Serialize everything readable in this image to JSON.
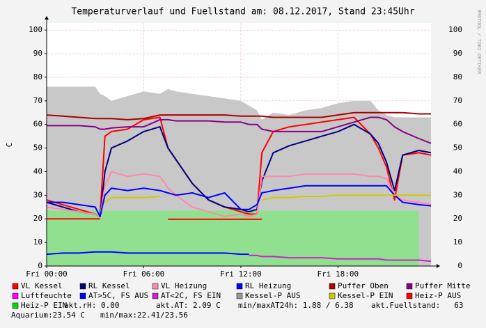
{
  "chart_data": {
    "type": "line",
    "title": "Temperaturverlauf und Fuellstand am: 08.12.2017, Stand 23:45Uhr",
    "y_label": "C",
    "watermark": "RRDTOOL / TOBI OETIKER",
    "x": [
      0,
      1,
      2,
      3,
      3.3,
      3.6,
      4,
      5,
      6,
      7,
      7.5,
      8,
      9,
      10,
      11,
      12,
      12.5,
      13,
      13.3,
      14,
      15,
      16,
      17,
      18,
      19,
      20,
      20.5,
      21,
      21.5,
      22,
      23,
      23.75
    ],
    "xlim": [
      0,
      23.75
    ],
    "xticks": [
      {
        "value": 0,
        "label": "Fri 00:00"
      },
      {
        "value": 6,
        "label": "Fri 06:00"
      },
      {
        "value": 12,
        "label": "Fri 12:00"
      },
      {
        "value": 18,
        "label": "Fri 18:00"
      }
    ],
    "ylim": [
      0,
      103
    ],
    "yticks": [
      0,
      10,
      20,
      30,
      40,
      50,
      60,
      70,
      80,
      90,
      100
    ],
    "grid": true,
    "series": [
      {
        "name": "VL Kessel",
        "color": "#ff0000",
        "style": "line",
        "values": [
          28,
          26,
          24,
          22,
          21,
          55,
          57,
          58,
          62,
          63,
          50,
          45,
          35,
          28,
          25,
          23,
          22,
          22,
          48,
          57,
          59,
          60,
          61,
          62,
          63,
          56,
          50,
          42,
          28,
          47,
          48,
          47
        ]
      },
      {
        "name": "RL Kessel",
        "color": "#000080",
        "style": "line",
        "values": [
          27,
          25,
          23,
          22,
          21,
          40,
          50,
          53,
          57,
          59,
          50,
          45,
          35,
          28,
          25,
          24,
          23,
          24,
          36,
          48,
          51,
          53,
          55,
          57,
          60,
          56,
          52,
          44,
          32,
          47,
          49,
          48
        ]
      },
      {
        "name": "VL Heizung",
        "color": "#ff88aa",
        "style": "line",
        "values": [
          25,
          24,
          23,
          22,
          21,
          34,
          40,
          38,
          39,
          38,
          33,
          30,
          25,
          23,
          21,
          22,
          21,
          22,
          38,
          38,
          38,
          39,
          39,
          39,
          39,
          38,
          38,
          37,
          30,
          28,
          27,
          26
        ]
      },
      {
        "name": "RL Heizung",
        "color": "#0000ff",
        "style": "line",
        "values": [
          27,
          27,
          26,
          25,
          21,
          30,
          33,
          32,
          33,
          32,
          31,
          30,
          31,
          29,
          31,
          24,
          24,
          26,
          31,
          32,
          33,
          34,
          34,
          34,
          34,
          34,
          34,
          34,
          30,
          27,
          26,
          25.5
        ]
      },
      {
        "name": "Puffer Oben",
        "color": "#aa0000",
        "style": "line",
        "values": [
          64,
          63.5,
          63,
          62.5,
          62.5,
          62.5,
          62.5,
          62,
          62.5,
          64,
          64,
          64,
          64,
          64,
          64,
          63.5,
          63.5,
          63.5,
          63.5,
          63,
          63,
          63,
          63,
          64,
          65,
          65,
          65,
          65,
          65,
          65,
          64.5,
          64.5
        ]
      },
      {
        "name": "Puffer Mitte",
        "color": "#880088",
        "style": "line",
        "values": [
          59.5,
          59.5,
          59.5,
          59,
          58,
          58,
          58.5,
          59,
          59,
          62,
          62,
          61.5,
          61.5,
          61.5,
          61,
          61,
          60,
          60,
          58,
          57,
          57,
          57,
          57,
          59,
          61,
          63,
          63,
          62,
          59,
          57,
          54,
          52
        ]
      },
      {
        "name": "Luftfeuchte",
        "color": "#ff00ff",
        "style": "line",
        "values": [
          null,
          null,
          null,
          null,
          null,
          null,
          null,
          null,
          null,
          null,
          null,
          null,
          null,
          null,
          null,
          null,
          null,
          null,
          null,
          null,
          null,
          null,
          null,
          null,
          null,
          null,
          null,
          null,
          null,
          null,
          null,
          null
        ]
      },
      {
        "name": "AT>5C, FS AUS",
        "color": "#0000ff",
        "style": "line",
        "values": [
          5,
          5.5,
          5.5,
          6,
          6,
          6,
          6,
          5.5,
          5.5,
          5.5,
          5.5,
          5.5,
          5.5,
          5.5,
          5.5,
          5,
          5,
          null,
          null,
          null,
          null,
          null,
          null,
          null,
          null,
          null,
          null,
          null,
          null,
          null,
          null,
          null
        ]
      },
      {
        "name": "AT<2C, FS EIN",
        "color": "#cc22cc",
        "style": "line",
        "values": [
          null,
          null,
          null,
          null,
          null,
          null,
          null,
          null,
          null,
          null,
          null,
          null,
          null,
          null,
          null,
          null,
          4.5,
          4.5,
          4,
          4,
          3.5,
          3.5,
          3.5,
          3,
          3,
          3,
          3,
          2.5,
          2.5,
          2.5,
          2.5,
          2
        ]
      },
      {
        "name": "Kessel-P AUS",
        "color": "#c8c8c8",
        "style": "area",
        "values": [
          76,
          76,
          76,
          76,
          73,
          72,
          70,
          72,
          74,
          73,
          75,
          74,
          73,
          72,
          71,
          70,
          68,
          66,
          62,
          65,
          64,
          66,
          67,
          69,
          70,
          70,
          66,
          64,
          63,
          63,
          63,
          63
        ]
      },
      {
        "name": "Kessel-P EIN",
        "color": "#cccc00",
        "style": "line",
        "values": [
          null,
          null,
          null,
          null,
          null,
          27,
          29,
          29,
          29,
          29.5,
          null,
          null,
          null,
          null,
          null,
          null,
          null,
          null,
          28,
          29,
          29,
          29.5,
          29.5,
          30,
          30,
          30,
          30,
          30,
          30,
          30,
          30,
          30
        ]
      },
      {
        "name": "Heiz-P AUS",
        "color": "#ff0000",
        "style": "line",
        "values": [
          20,
          20,
          20,
          20,
          20,
          null,
          null,
          null,
          null,
          null,
          19.8,
          19.8,
          19.8,
          19.8,
          19.8,
          19.8,
          19.8,
          19.8,
          19.8,
          null,
          null,
          null,
          null,
          null,
          null,
          null,
          null,
          null,
          null,
          null,
          null,
          null
        ]
      },
      {
        "name": "Heiz-P EIN",
        "color": "#90e090",
        "style": "area",
        "values": [
          23.5,
          23.5,
          23.5,
          23.5,
          23.5,
          23.5,
          23.5,
          23.5,
          23.5,
          23.5,
          23.5,
          23.5,
          23.5,
          23.5,
          23.5,
          23.5,
          23.5,
          23.5,
          23.5,
          23.5,
          23.5,
          23.5,
          23.5,
          23.5,
          23.5,
          23.5,
          23.5,
          23.5,
          23.5,
          23.5,
          23.5,
          null
        ]
      }
    ],
    "stats": [
      "akt.rH: 0.00",
      "akt.AT: 2.09 C",
      "min/maxAT24h: 1.88 / 6.38",
      "akt.Fuellstand:   63",
      "Aquarium:23.54 C",
      "min/max:22.41/23.56"
    ]
  }
}
